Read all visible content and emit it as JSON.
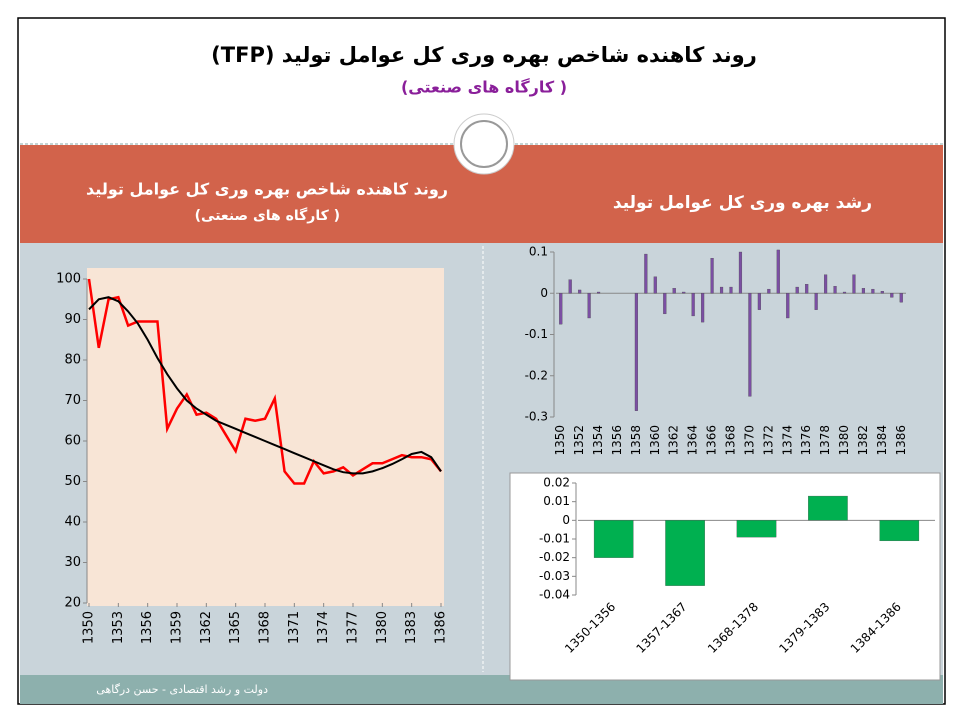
{
  "slide": {
    "title": "روند کاهنده شاخص بهره وری کل عوامل تولید (TFP)",
    "subtitle": "( کارگاه های صنعتی)",
    "left_header": "روند کاهنده شاخص بهره وری کل عوامل تولید",
    "left_subheader": "( کارگاه های صنعتی)",
    "right_header": "رشد بهره وری کل عوامل تولید",
    "footer": "دولت و رشد اقتصادی - حسن درگاهی"
  },
  "chart_data": [
    {
      "type": "line",
      "x": [
        1350,
        1351,
        1352,
        1353,
        1354,
        1355,
        1356,
        1357,
        1358,
        1359,
        1360,
        1361,
        1362,
        1363,
        1364,
        1365,
        1366,
        1367,
        1368,
        1369,
        1370,
        1371,
        1372,
        1373,
        1374,
        1375,
        1376,
        1377,
        1378,
        1379,
        1380,
        1381,
        1382,
        1383,
        1384,
        1385,
        1386
      ],
      "series": [
        {
          "color": "#ff0000",
          "values": [
            100,
            83,
            95,
            95.5,
            88.5,
            89.5,
            89.5,
            89.5,
            63,
            68,
            71.5,
            66.5,
            67,
            65.5,
            61.5,
            57.5,
            65.5,
            65,
            65.5,
            70.5,
            52.5,
            49.5,
            49.5,
            55,
            52,
            52.5,
            53.5,
            51.5,
            53,
            54.5,
            54.5,
            55.5,
            56.5,
            56,
            56,
            55.5,
            52.5
          ]
        },
        {
          "color": "#000000",
          "values": [
            92.5,
            95,
            95.5,
            94.5,
            92,
            89,
            85,
            80.5,
            76.5,
            73,
            70,
            68,
            66.5,
            65,
            64,
            63,
            62,
            61,
            60,
            59,
            58,
            57,
            56,
            55,
            54,
            53,
            52.3,
            52,
            52,
            52.5,
            53.3,
            54.3,
            55.5,
            56.8,
            57.3,
            56,
            52.5
          ]
        }
      ],
      "xlim": [
        1350,
        1386
      ],
      "xticks": [
        1350,
        1353,
        1356,
        1359,
        1362,
        1365,
        1368,
        1371,
        1374,
        1377,
        1380,
        1383,
        1386
      ],
      "ylim": [
        20,
        100
      ],
      "yticks": [
        20,
        30,
        40,
        50,
        60,
        70,
        80,
        90,
        100
      ],
      "grid": false
    },
    {
      "type": "bar",
      "color": "#7b4fa3",
      "categories": [
        "1350",
        null,
        "1352",
        null,
        "1354",
        null,
        "1356",
        null,
        "1358",
        null,
        "1360",
        null,
        "1362",
        null,
        "1364",
        null,
        "1366",
        null,
        "1368",
        null,
        "1370",
        null,
        "1372",
        null,
        "1374",
        null,
        "1376",
        null,
        "1378",
        null,
        "1380",
        null,
        "1382",
        null,
        "1384",
        null,
        "1386"
      ],
      "values": [
        -0.075,
        0.033,
        0.008,
        -0.06,
        0.003,
        0,
        0,
        0,
        -0.285,
        0.095,
        0.04,
        -0.05,
        0.012,
        0.003,
        -0.055,
        -0.07,
        0.085,
        0.015,
        0.015,
        0.1,
        -0.25,
        -0.04,
        0.01,
        0.105,
        -0.06,
        0.015,
        0.022,
        -0.04,
        0.045,
        0.017,
        0.003,
        0.045,
        0.012,
        0.01,
        0.005,
        -0.01,
        -0.022
      ],
      "ylim": [
        -0.3,
        0.1
      ],
      "yticks": [
        -0.3,
        -0.2,
        -0.1,
        0,
        0.1
      ],
      "grid": false
    },
    {
      "type": "bar",
      "color": "#00b050",
      "categories": [
        "1350-1356",
        "1357-1367",
        "1368-1378",
        "1379-1383",
        "1384-1386"
      ],
      "values": [
        -0.02,
        -0.035,
        -0.009,
        0.013,
        -0.011
      ],
      "ylim": [
        -0.04,
        0.02
      ],
      "yticks": [
        -0.04,
        -0.03,
        -0.02,
        -0.01,
        0,
        0.01,
        0.02
      ],
      "grid": false
    }
  ]
}
